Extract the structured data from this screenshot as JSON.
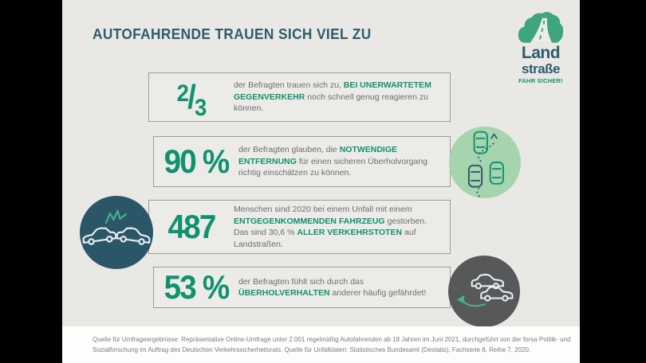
{
  "header": {
    "title": "AUTOFAHRENDE TRAUEN SICH VIEL ZU"
  },
  "logo": {
    "line1": "Land",
    "line2": "straße",
    "tagline": "FAHR SICHER!"
  },
  "stats": [
    {
      "id": "oncoming-traffic-reaction",
      "value": "2/3",
      "fraction": {
        "numerator": "2",
        "slash": "/",
        "denominator": "3"
      },
      "segments": [
        {
          "t": "der Befragten trauen sich zu, ",
          "h": false
        },
        {
          "t": "BEI UNERWARTETEM GEGENVERKEHR",
          "h": true
        },
        {
          "t": " noch schnell genug reagieren zu können.",
          "h": false
        }
      ]
    },
    {
      "id": "overtaking-distance",
      "value": "90 %",
      "icon": "overtaking-top-view-icon",
      "segments": [
        {
          "t": "der Befragten glauben, die ",
          "h": false
        },
        {
          "t": "NOTWENDIGE ENTFERNUNG",
          "h": true
        },
        {
          "t": " für einen sicheren Überholvorgang richtig einschätzen zu können.",
          "h": false
        }
      ]
    },
    {
      "id": "head-on-fatalities",
      "value": "487",
      "icon": "head-on-collision-icon",
      "segments": [
        {
          "t": "Menschen sind 2020 bei einem Unfall mit einem ",
          "h": false
        },
        {
          "t": "ENTGEGENKOMMENDEN FAHRZEUG",
          "h": true
        },
        {
          "t": " gestorben. Das sind 30,6 % ",
          "h": false
        },
        {
          "t": "ALLER VERKEHRSTOTEN",
          "h": true
        },
        {
          "t": " auf Landstraßen.",
          "h": false
        }
      ]
    },
    {
      "id": "overtaking-behavior",
      "value": "53 %",
      "icon": "overtaking-side-view-icon",
      "segments": [
        {
          "t": "der Befragten fühlt sich durch das ",
          "h": false
        },
        {
          "t": "ÜBERHOLVERHALTEN",
          "h": true
        },
        {
          "t": " anderer häufig gefährdet!",
          "h": false
        }
      ]
    }
  ],
  "footer": {
    "source_line1": "Quelle für Umfrageergebnisse: Repräsentative Online-Umfrage unter 2.001 regelmäßig Autofahrenden ab 18 Jahren im Juni 2021, durchgeführt von der forsa Politik- und",
    "source_line2": "Sozialforschung im Auftrag des Deutschen Verkehrssicherheitsrats. Quelle für Unfalldaten: Statistisches Bundesamt (Destatis), Fachserie 8, Reihe 7, 2020."
  },
  "colors": {
    "accent_green": "#0f926f",
    "heading_teal": "#2d5c6e",
    "body_text_gray": "#6d6d6d",
    "box_border_gray": "#9d9c99",
    "background_gray": "#e9e8e5",
    "circle_light_green": "#a5d4af",
    "circle_dark_teal": "#2b5668",
    "circle_dark_gray": "#57585a"
  }
}
